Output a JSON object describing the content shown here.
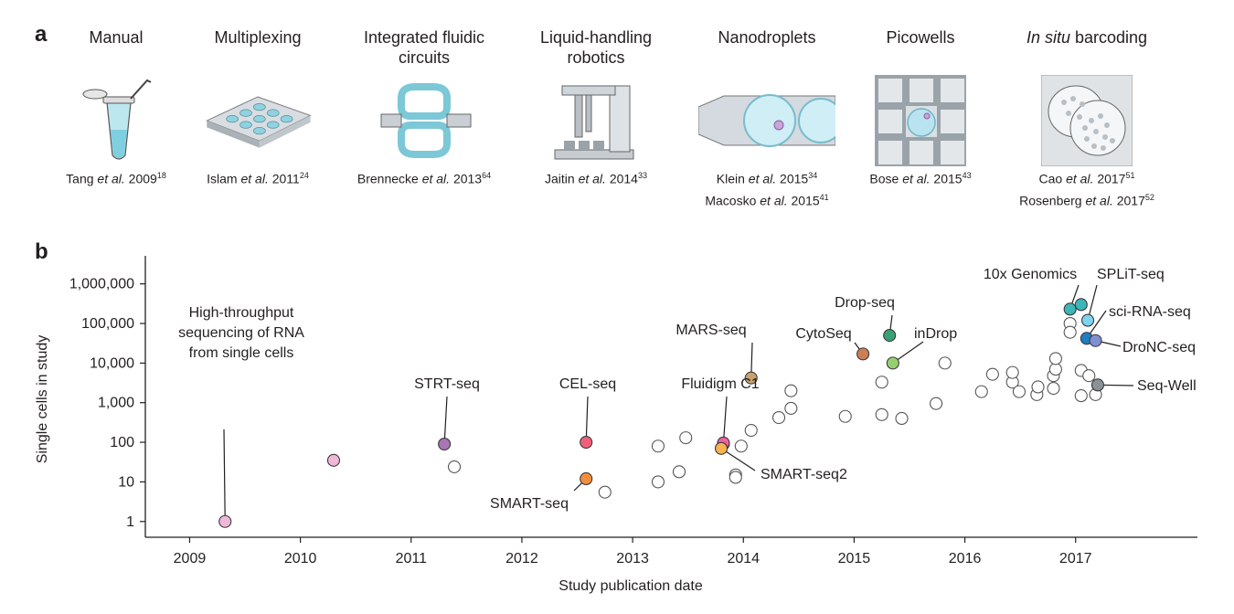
{
  "panel_a": {
    "letter": "a",
    "technologies": [
      {
        "title": "Manual",
        "title_italic": "",
        "icon": "pcr-tube-pipette-icon",
        "refs": [
          {
            "author": "Tang ",
            "etal": "et al.",
            "year": " 2009",
            "sup": "18"
          }
        ]
      },
      {
        "title": "Multiplexing",
        "title_italic": "",
        "icon": "well-plate-icon",
        "refs": [
          {
            "author": "Islam ",
            "etal": "et al.",
            "year": " 2011",
            "sup": "24"
          }
        ]
      },
      {
        "title": "Integrated fluidic circuits",
        "title_italic": "",
        "icon": "fluidic-circuit-icon",
        "refs": [
          {
            "author": "Brennecke ",
            "etal": "et al.",
            "year": " 2013",
            "sup": "64"
          }
        ]
      },
      {
        "title": "Liquid-handling robotics",
        "title_italic": "",
        "icon": "liquid-handling-robot-icon",
        "refs": [
          {
            "author": "Jaitin ",
            "etal": "et al.",
            "year": " 2014",
            "sup": "33"
          }
        ]
      },
      {
        "title": "Nanodroplets",
        "title_italic": "",
        "icon": "nanodroplet-channel-icon",
        "refs": [
          {
            "author": "Klein ",
            "etal": "et al.",
            "year": " 2015",
            "sup": "34"
          },
          {
            "author": "Macosko ",
            "etal": "et al.",
            "year": " 2015",
            "sup": "41"
          }
        ]
      },
      {
        "title": "Picowells",
        "title_italic": "",
        "icon": "picowell-icon",
        "refs": [
          {
            "author": "Bose ",
            "etal": "et al.",
            "year": " 2015",
            "sup": "43"
          }
        ]
      },
      {
        "title": " barcoding",
        "title_italic": "In situ",
        "icon": "in-situ-barcoding-icon",
        "refs": [
          {
            "author": "Cao ",
            "etal": "et al.",
            "year": " 2017",
            "sup": "51"
          },
          {
            "author": "Rosenberg ",
            "etal": "et al.",
            "year": " 2017",
            "sup": "52"
          }
        ]
      }
    ]
  },
  "panel_b": {
    "letter": "b"
  },
  "chart_data": {
    "type": "scatter",
    "xlabel": "Study publication date",
    "ylabel": "Single cells in study",
    "x_ticks": [
      "2009",
      "2010",
      "2011",
      "2012",
      "2013",
      "2014",
      "2015",
      "2016",
      "2017"
    ],
    "xlim": [
      2008.6,
      2018.1
    ],
    "y_scale": "log",
    "y_ticks": [
      "1",
      "10",
      "100",
      "1,000",
      "10,000",
      "100,000",
      "1,000,000"
    ],
    "ylim": [
      0.4,
      3000000
    ],
    "grid": false,
    "labeled_points": [
      {
        "label": "High-throughput sequencing of RNA from single cells",
        "x": 2009.32,
        "y": 1,
        "color": "#f0b8d8"
      },
      {
        "label": "",
        "x": 2010.3,
        "y": 35,
        "color": "#f0b8d8"
      },
      {
        "label": "STRT-seq",
        "x": 2011.3,
        "y": 90,
        "color": "#a875b5"
      },
      {
        "label": "CEL-seq",
        "x": 2012.58,
        "y": 100,
        "color": "#f0607a"
      },
      {
        "label": "SMART-seq",
        "x": 2012.58,
        "y": 12,
        "color": "#f58f3e"
      },
      {
        "label": "Fluidigm C1",
        "x": 2013.82,
        "y": 96,
        "color": "#f0609e"
      },
      {
        "label": "SMART-seq2",
        "x": 2013.8,
        "y": 70,
        "color": "#f8b450"
      },
      {
        "label": "MARS-seq",
        "x": 2014.07,
        "y": 4200,
        "color": "#c9a26d"
      },
      {
        "label": "CytoSeq",
        "x": 2015.08,
        "y": 17000,
        "color": "#cd7e55"
      },
      {
        "label": "Drop-seq",
        "x": 2015.32,
        "y": 50000,
        "color": "#3aa176"
      },
      {
        "label": "inDrop",
        "x": 2015.35,
        "y": 10000,
        "color": "#96cf70"
      },
      {
        "label": "10x Genomics",
        "x": 2016.95,
        "y": 230000,
        "color": "#3cb6b8"
      },
      {
        "label": "",
        "x": 2017.05,
        "y": 300000,
        "color": "#3cb6b8"
      },
      {
        "label": "SPLiT-seq",
        "x": 2017.11,
        "y": 120000,
        "color": "#7fd3ef"
      },
      {
        "label": "sci-RNA-seq",
        "x": 2017.1,
        "y": 42000,
        "color": "#1d7fc4"
      },
      {
        "label": "DroNC-seq",
        "x": 2017.18,
        "y": 37000,
        "color": "#7f8fd1"
      },
      {
        "label": "Seq-Well",
        "x": 2017.2,
        "y": 2800,
        "color": "#8a9298"
      }
    ],
    "other_points": [
      {
        "x": 2011.39,
        "y": 24
      },
      {
        "x": 2012.75,
        "y": 5.5
      },
      {
        "x": 2013.23,
        "y": 80
      },
      {
        "x": 2013.23,
        "y": 10
      },
      {
        "x": 2013.42,
        "y": 18
      },
      {
        "x": 2013.48,
        "y": 130
      },
      {
        "x": 2013.82,
        "y": 90
      },
      {
        "x": 2013.98,
        "y": 80
      },
      {
        "x": 2013.93,
        "y": 15
      },
      {
        "x": 2013.93,
        "y": 13
      },
      {
        "x": 2014.07,
        "y": 200
      },
      {
        "x": 2014.32,
        "y": 420
      },
      {
        "x": 2014.43,
        "y": 720
      },
      {
        "x": 2014.43,
        "y": 2000
      },
      {
        "x": 2014.92,
        "y": 450
      },
      {
        "x": 2015.25,
        "y": 3300
      },
      {
        "x": 2015.25,
        "y": 500
      },
      {
        "x": 2015.43,
        "y": 400
      },
      {
        "x": 2015.74,
        "y": 950
      },
      {
        "x": 2015.82,
        "y": 10000
      },
      {
        "x": 2016.15,
        "y": 1900
      },
      {
        "x": 2016.25,
        "y": 5200
      },
      {
        "x": 2016.43,
        "y": 3300
      },
      {
        "x": 2016.43,
        "y": 5800
      },
      {
        "x": 2016.49,
        "y": 1900
      },
      {
        "x": 2016.65,
        "y": 1600
      },
      {
        "x": 2016.66,
        "y": 2500
      },
      {
        "x": 2016.8,
        "y": 4800
      },
      {
        "x": 2016.8,
        "y": 2300
      },
      {
        "x": 2016.82,
        "y": 7000
      },
      {
        "x": 2016.82,
        "y": 13000
      },
      {
        "x": 2016.95,
        "y": 100000
      },
      {
        "x": 2016.95,
        "y": 60000
      },
      {
        "x": 2017.05,
        "y": 6500
      },
      {
        "x": 2017.05,
        "y": 1500
      },
      {
        "x": 2017.12,
        "y": 4800
      },
      {
        "x": 2017.18,
        "y": 1600
      }
    ]
  }
}
